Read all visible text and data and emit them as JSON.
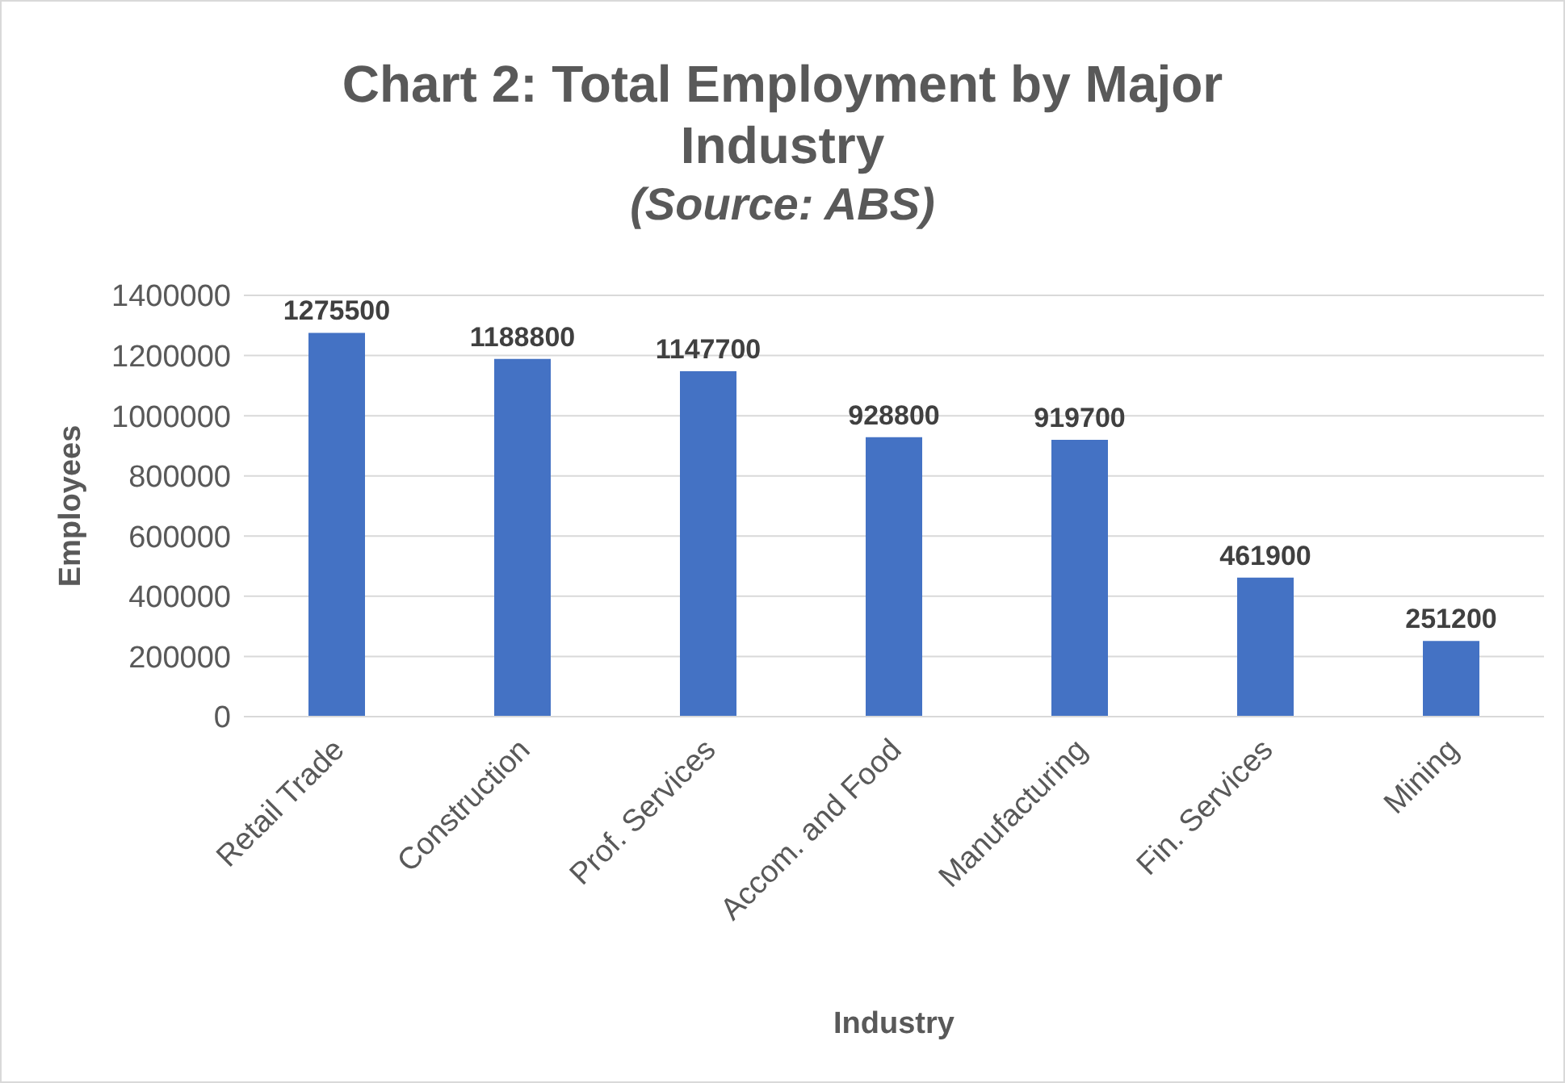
{
  "chart_data": {
    "type": "bar",
    "title": "Chart 2: Total Employment by Major Industry",
    "subtitle": "(Source: ABS)",
    "xlabel": "Industry",
    "ylabel": "Employees",
    "categories": [
      "Retail Trade",
      "Construction",
      "Prof. Services",
      "Accom. and Food",
      "Manufacturing",
      "Fin. Services",
      "Mining"
    ],
    "values": [
      1275500,
      1188800,
      1147700,
      928800,
      919700,
      461900,
      251200
    ],
    "color": "#4472c4",
    "ylim": [
      0,
      1400000
    ],
    "yticks": [
      0,
      200000,
      400000,
      600000,
      800000,
      1000000,
      1200000,
      1400000
    ],
    "grid": "y",
    "data_labels": true
  }
}
